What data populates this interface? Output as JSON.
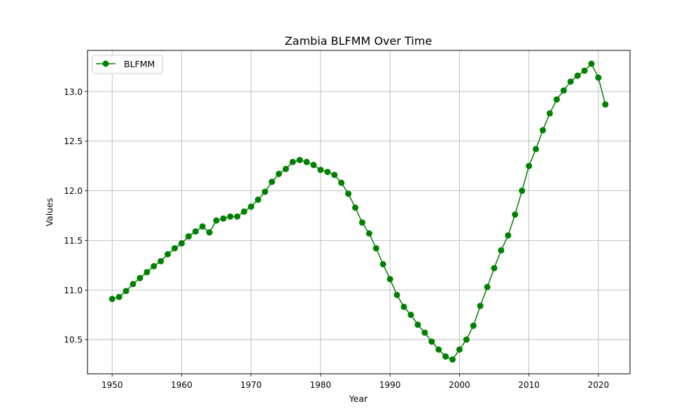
{
  "chart_data": {
    "type": "line",
    "title": "Zambia BLFMM Over Time",
    "xlabel": "Year",
    "ylabel": "Values",
    "xlim": [
      1946.45,
      2024.55
    ],
    "ylim": [
      10.1555,
      13.4145
    ],
    "grid": true,
    "legend": {
      "position": "upper-left"
    },
    "x_ticks": [
      1950,
      1960,
      1970,
      1980,
      1990,
      2000,
      2010,
      2020
    ],
    "y_ticks": [
      10.5,
      11.0,
      11.5,
      12.0,
      12.5,
      13.0
    ],
    "x_tick_labels": [
      "1950",
      "1960",
      "1970",
      "1980",
      "1990",
      "2000",
      "2010",
      "2020"
    ],
    "y_tick_labels": [
      "10.5",
      "11.0",
      "11.5",
      "12.0",
      "12.5",
      "13.0"
    ],
    "series": [
      {
        "name": "BLFMM",
        "color": "#008000",
        "marker": "circle",
        "x": [
          1950,
          1951,
          1952,
          1953,
          1954,
          1955,
          1956,
          1957,
          1958,
          1959,
          1960,
          1961,
          1962,
          1963,
          1964,
          1965,
          1966,
          1967,
          1968,
          1969,
          1970,
          1971,
          1972,
          1973,
          1974,
          1975,
          1976,
          1977,
          1978,
          1979,
          1980,
          1981,
          1982,
          1983,
          1984,
          1985,
          1986,
          1987,
          1988,
          1989,
          1990,
          1991,
          1992,
          1993,
          1994,
          1995,
          1996,
          1997,
          1998,
          1999,
          2000,
          2001,
          2002,
          2003,
          2004,
          2005,
          2006,
          2007,
          2008,
          2009,
          2010,
          2011,
          2012,
          2013,
          2014,
          2015,
          2016,
          2017,
          2018,
          2019,
          2020,
          2021
        ],
        "values": [
          10.91,
          10.93,
          10.99,
          11.06,
          11.12,
          11.18,
          11.24,
          11.29,
          11.36,
          11.42,
          11.47,
          11.54,
          11.59,
          11.64,
          11.58,
          11.7,
          11.72,
          11.74,
          11.74,
          11.79,
          11.84,
          11.91,
          11.99,
          12.09,
          12.17,
          12.22,
          12.29,
          12.31,
          12.29,
          12.26,
          12.21,
          12.19,
          12.16,
          12.08,
          11.97,
          11.83,
          11.68,
          11.57,
          11.42,
          11.26,
          11.11,
          10.95,
          10.83,
          10.75,
          10.65,
          10.57,
          10.48,
          10.4,
          10.33,
          10.3,
          10.4,
          10.5,
          10.64,
          10.84,
          11.03,
          11.22,
          11.4,
          11.55,
          11.76,
          12.0,
          12.25,
          12.42,
          12.61,
          12.78,
          12.92,
          13.01,
          13.1,
          13.16,
          13.21,
          13.28,
          13.14,
          12.87
        ]
      }
    ]
  }
}
